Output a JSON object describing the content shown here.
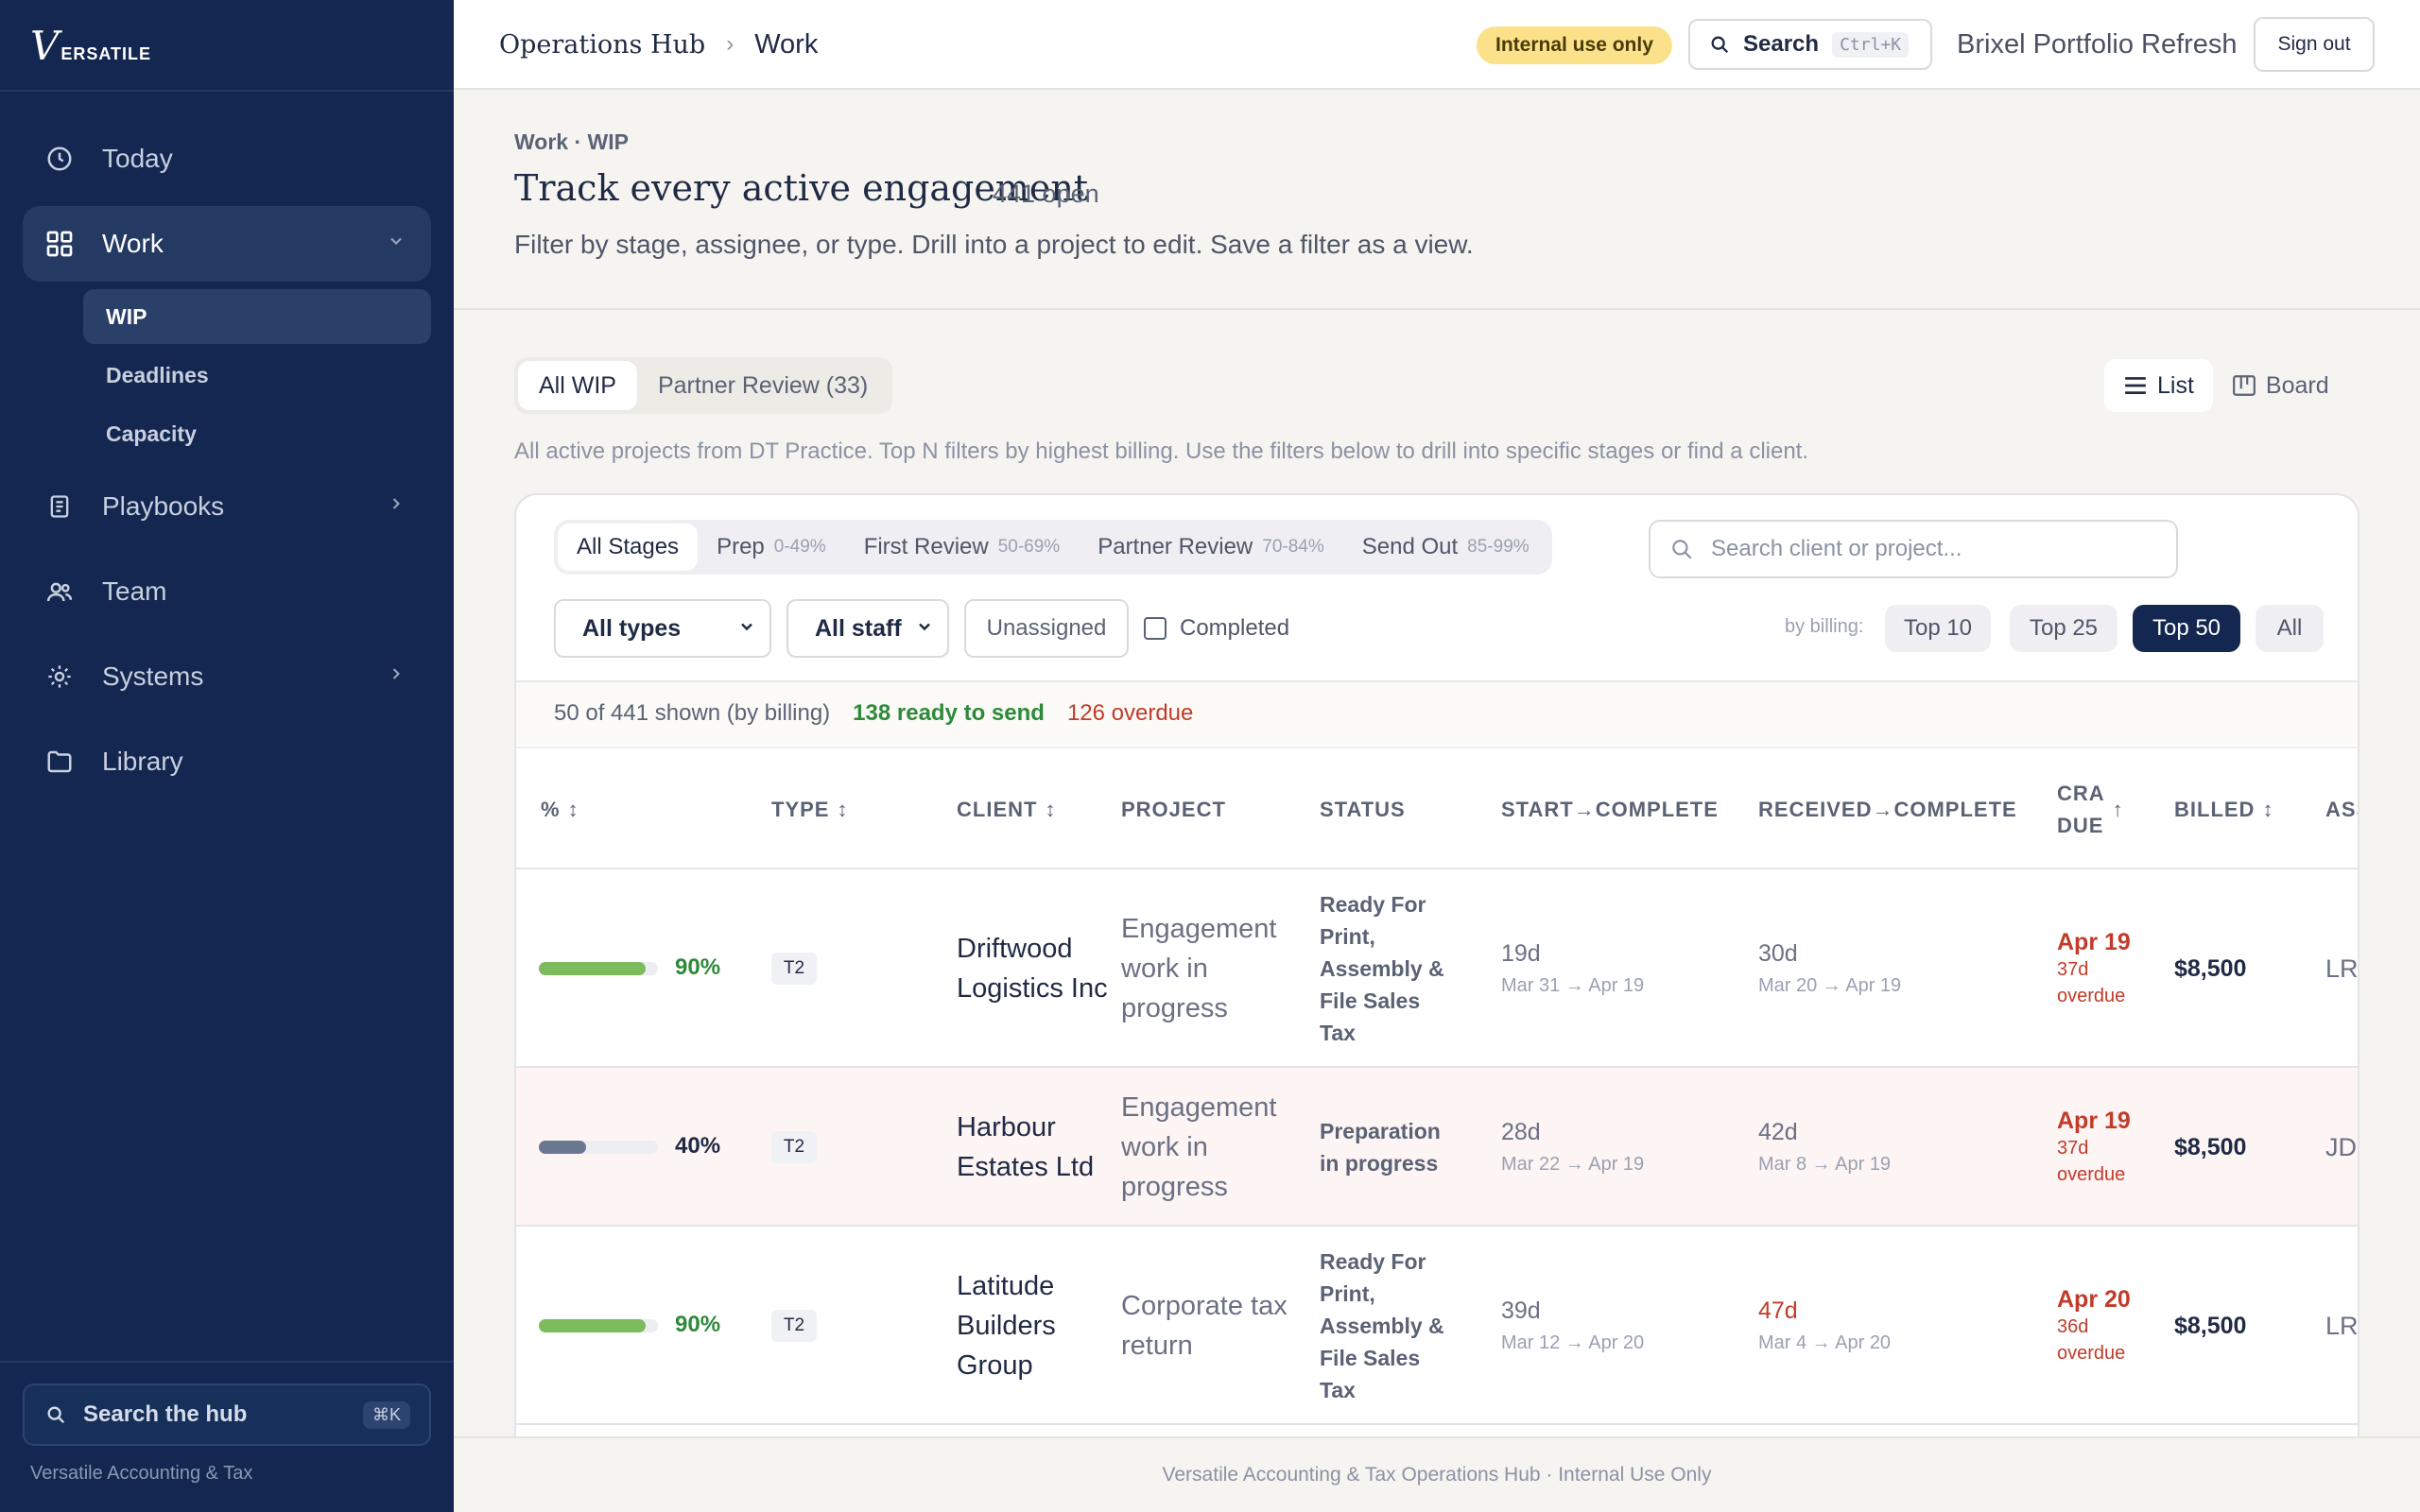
{
  "sidebar": {
    "logo_letter": "V",
    "logo_word": "ERSATILE",
    "nav": [
      {
        "label": "Today",
        "icon": "clock-icon"
      },
      {
        "label": "Work",
        "icon": "grid-icon"
      },
      {
        "label": "Playbooks",
        "icon": "clipboard-icon"
      },
      {
        "label": "Team",
        "icon": "users-icon"
      },
      {
        "label": "Systems",
        "icon": "gear-icon"
      },
      {
        "label": "Library",
        "icon": "folder-icon"
      }
    ],
    "work_sub": [
      "WIP",
      "Deadlines",
      "Capacity"
    ],
    "search_label": "Search the hub",
    "search_kbd": "⌘K",
    "footer": "Versatile Accounting & Tax"
  },
  "header": {
    "crumb_root": "Operations Hub",
    "crumb_sep": "›",
    "crumb_current": "Work",
    "badge": "Internal use only",
    "search_label": "Search",
    "search_kbd": "Ctrl+K",
    "project": "Brixel Portfolio Refresh",
    "signout": "Sign out"
  },
  "page": {
    "eyebrow": "Work · WIP",
    "title": "Track every active engagement",
    "open_count": "441 open",
    "description": "Filter by stage, assignee, or type. Drill into a project to edit. Save a filter as a view."
  },
  "tabs": [
    "All WIP",
    "Partner Review (33)"
  ],
  "views": {
    "list": "List",
    "board": "Board"
  },
  "note": "All active projects from DT Practice. Top N filters by highest billing. Use the filters below to drill into specific stages or find a client.",
  "filters": {
    "stages": [
      {
        "label": "All Stages",
        "range": ""
      },
      {
        "label": "Prep",
        "range": "0-49%"
      },
      {
        "label": "First Review",
        "range": "50-69%"
      },
      {
        "label": "Partner Review",
        "range": "70-84%"
      },
      {
        "label": "Send Out",
        "range": "85-99%"
      }
    ],
    "search_placeholder": "Search client or project...",
    "type_select": "All types",
    "staff_select": "All staff",
    "unassigned": "Unassigned",
    "completed": "Completed",
    "by_billing": "by billing:",
    "top": [
      "Top 10",
      "Top 25",
      "Top 50",
      "All"
    ]
  },
  "summary": {
    "shown": "50 of 441 shown (by billing)",
    "ready": "138 ready to send",
    "overdue": "126 overdue"
  },
  "table": {
    "headers": {
      "pct": "%",
      "type": "TYPE",
      "client": "CLIENT",
      "project": "PROJECT",
      "status": "STATUS",
      "start": "START→COMPLETE",
      "received": "RECEIVED→COMPLETE",
      "cra1": "CRA",
      "cra2": "DUE",
      "billed": "BILLED",
      "assignee": "ASSIGNEE"
    },
    "sort_icon": "↕",
    "sort_up": "↑",
    "rows": [
      {
        "pct": "90%",
        "progress": 0.9,
        "type": "T2",
        "client": "Driftwood Logistics Inc",
        "project": "Engagement work in progress",
        "status": "Ready For Print, Assembly & File Sales Tax",
        "start_days": "19d",
        "start_range": "Mar 31 → Apr 19",
        "recv_days": "30d",
        "recv_range": "Mar 20 → Apr 19",
        "due": "Apr 19",
        "due_note": "37d overdue",
        "billed": "$8,500",
        "assignee": "LR"
      },
      {
        "pct": "40%",
        "progress": 0.4,
        "type": "T2",
        "client": "Harbour Estates Ltd",
        "project": "Engagement work in progress",
        "status": "Preparation in progress",
        "start_days": "28d",
        "start_range": "Mar 22 → Apr 19",
        "recv_days": "42d",
        "recv_range": "Mar 8 → Apr 19",
        "due": "Apr 19",
        "due_note": "37d overdue",
        "billed": "$8,500",
        "assignee": "JD"
      },
      {
        "pct": "90%",
        "progress": 0.9,
        "type": "T2",
        "client": "Latitude Builders Group",
        "project": "Corporate tax return",
        "status": "Ready For Print, Assembly & File Sales Tax",
        "start_days": "39d",
        "start_range": "Mar 12 → Apr 20",
        "recv_days": "47d",
        "recv_range": "Mar 4 → Apr 20",
        "due": "Apr 20",
        "due_note": "36d overdue",
        "billed": "$8,500",
        "assignee": "LR"
      }
    ]
  },
  "colors": {
    "navy": "#132750",
    "green": "#2e8a3a",
    "red": "#c23b2a",
    "bar_green": "#7dbb5f",
    "bar_gray": "#6b7891"
  },
  "footer": "Versatile Accounting & Tax Operations Hub · Internal Use Only"
}
